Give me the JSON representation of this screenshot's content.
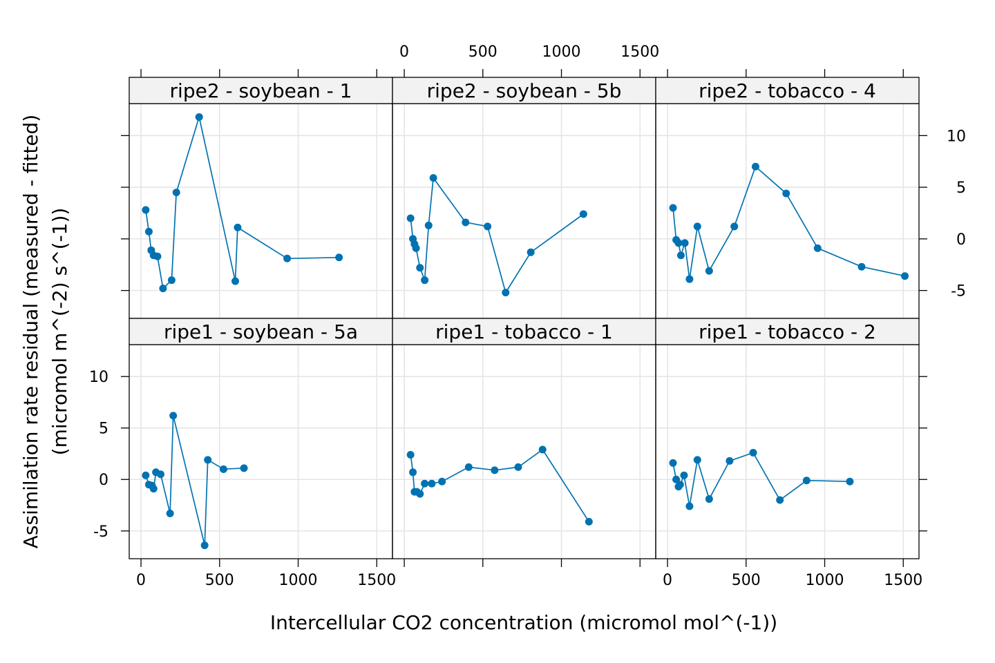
{
  "chart_data": {
    "type": "line",
    "xlabel": "Intercellular CO2 concentration (micromol mol^(-1))",
    "ylabel_line1": "Assimilation rate residual (measured - fitted)",
    "ylabel_line2": "(micromol m^(-2) s^(-1))",
    "xlim": [
      -75,
      1600
    ],
    "ylim": [
      -7.7,
      13.1
    ],
    "x_ticks": [
      0,
      500,
      1000,
      1500
    ],
    "x_tick_labels": [
      "0",
      "500",
      "1000",
      "1500"
    ],
    "y_ticks": [
      -5,
      0,
      5,
      10
    ],
    "y_tick_labels": [
      "-5",
      "0",
      "5",
      "10"
    ],
    "grid": true,
    "color": "#0072b2",
    "panels": [
      {
        "title": "ripe2 - soybean - 1",
        "x": [
          30,
          50,
          65,
          80,
          105,
          140,
          195,
          225,
          370,
          600,
          615,
          930,
          1260
        ],
        "y": [
          2.8,
          0.7,
          -1.1,
          -1.6,
          -1.7,
          -4.8,
          -4.0,
          4.5,
          11.8,
          -4.1,
          1.1,
          -1.9,
          -1.8
        ]
      },
      {
        "title": "ripe2 - soybean - 5b",
        "x": [
          40,
          55,
          65,
          75,
          100,
          130,
          155,
          185,
          390,
          530,
          645,
          805,
          1140
        ],
        "y": [
          2.0,
          0.0,
          -0.5,
          -0.9,
          -2.8,
          -4.0,
          1.3,
          5.9,
          1.6,
          1.2,
          -5.2,
          -1.3,
          2.4
        ]
      },
      {
        "title": "ripe2 - tobacco - 4",
        "x": [
          35,
          55,
          70,
          85,
          110,
          140,
          190,
          265,
          425,
          560,
          755,
          955,
          1235,
          1510
        ],
        "y": [
          3.0,
          -0.1,
          -0.4,
          -1.6,
          -0.4,
          -3.9,
          1.2,
          -3.1,
          1.2,
          7.0,
          4.4,
          -0.9,
          -2.7,
          -3.6
        ]
      },
      {
        "title": "ripe1 - soybean - 5a",
        "x": [
          30,
          50,
          70,
          80,
          95,
          125,
          185,
          205,
          405,
          425,
          525,
          655
        ],
        "y": [
          0.4,
          -0.5,
          -0.6,
          -0.9,
          0.7,
          0.5,
          -3.3,
          6.2,
          -6.4,
          1.9,
          1.0,
          1.1
        ],
        "x_ticks": [
          0,
          500,
          1000,
          1500
        ]
      },
      {
        "title": "ripe1 - tobacco - 1",
        "x": [
          40,
          55,
          65,
          80,
          100,
          130,
          175,
          240,
          410,
          575,
          725,
          880,
          1175
        ],
        "y": [
          2.4,
          0.7,
          -1.2,
          -1.2,
          -1.4,
          -0.4,
          -0.4,
          -0.2,
          1.2,
          0.9,
          1.2,
          2.9,
          -4.1
        ]
      },
      {
        "title": "ripe1 - tobacco - 2",
        "x": [
          35,
          55,
          70,
          80,
          105,
          140,
          190,
          265,
          395,
          545,
          715,
          885,
          1160
        ],
        "y": [
          1.6,
          0.0,
          -0.7,
          -0.5,
          0.4,
          -2.6,
          1.9,
          -1.9,
          1.8,
          2.6,
          -2.0,
          -0.1,
          -0.2
        ]
      }
    ]
  }
}
